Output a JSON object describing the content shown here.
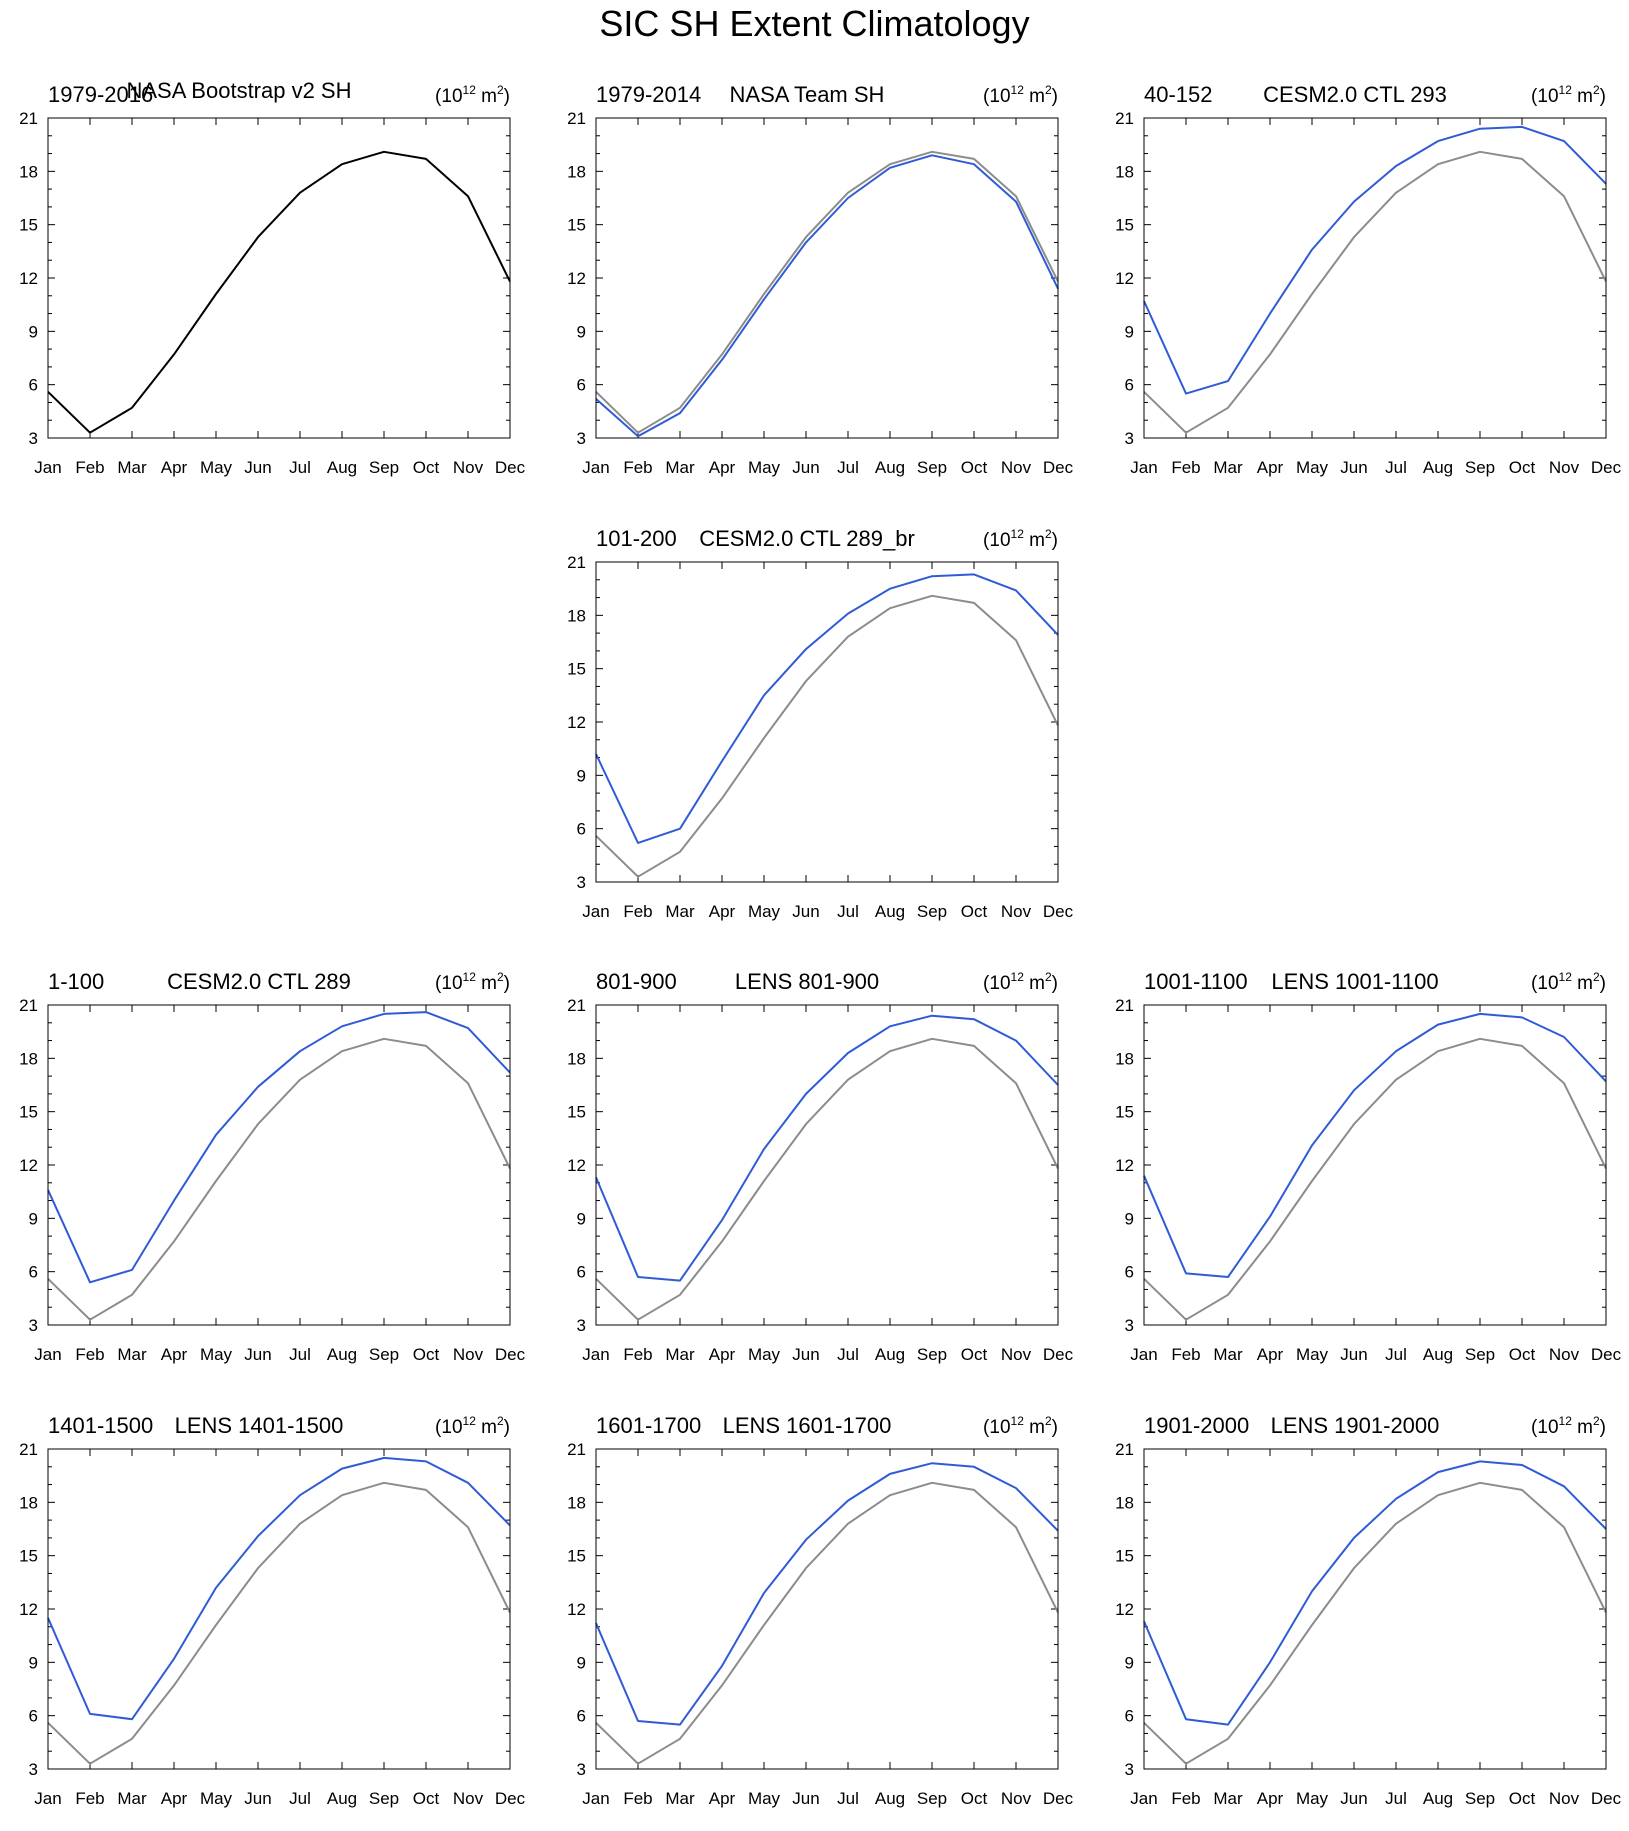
{
  "title": "SIC SH Extent Climatology",
  "units": {
    "base": "10",
    "exp": "12",
    "unit": "m",
    "unit_exp": "2"
  },
  "colors": {
    "reference": "#000000",
    "observation_overlay": "#8c8c8c",
    "model": "#2f5bd6"
  },
  "chart_data": [
    {
      "type": "line",
      "left_label": "1979-2016",
      "center_label": "NASA Bootstrap v2 SH",
      "categories": [
        "Jan",
        "Feb",
        "Mar",
        "Apr",
        "May",
        "Jun",
        "Jul",
        "Aug",
        "Sep",
        "Oct",
        "Nov",
        "Dec"
      ],
      "yticks": [
        3,
        6,
        9,
        12,
        15,
        18,
        21
      ],
      "ylim": [
        3,
        21
      ],
      "series": [
        {
          "name": "NASA Bootstrap v2 SH",
          "color": "#000000",
          "values": [
            5.6,
            3.3,
            4.7,
            7.7,
            11.1,
            14.3,
            16.8,
            18.4,
            19.1,
            18.7,
            16.6,
            11.8
          ]
        }
      ]
    },
    {
      "type": "line",
      "left_label": "1979-2014",
      "center_label": "NASA Team SH",
      "categories": [
        "Jan",
        "Feb",
        "Mar",
        "Apr",
        "May",
        "Jun",
        "Jul",
        "Aug",
        "Sep",
        "Oct",
        "Nov",
        "Dec"
      ],
      "yticks": [
        3,
        6,
        9,
        12,
        15,
        18,
        21
      ],
      "ylim": [
        3,
        21
      ],
      "series": [
        {
          "name": "NASA Bootstrap v2 SH",
          "color": "#8c8c8c",
          "values": [
            5.6,
            3.3,
            4.7,
            7.7,
            11.1,
            14.3,
            16.8,
            18.4,
            19.1,
            18.7,
            16.6,
            11.8
          ]
        },
        {
          "name": "NASA Team SH",
          "color": "#2f5bd6",
          "values": [
            5.2,
            3.1,
            4.4,
            7.4,
            10.8,
            14.0,
            16.5,
            18.2,
            18.9,
            18.4,
            16.3,
            11.4
          ]
        }
      ]
    },
    {
      "type": "line",
      "left_label": "40-152",
      "center_label": "CESM2.0 CTL 293",
      "categories": [
        "Jan",
        "Feb",
        "Mar",
        "Apr",
        "May",
        "Jun",
        "Jul",
        "Aug",
        "Sep",
        "Oct",
        "Nov",
        "Dec"
      ],
      "yticks": [
        3,
        6,
        9,
        12,
        15,
        18,
        21
      ],
      "ylim": [
        3,
        21
      ],
      "series": [
        {
          "name": "NASA Bootstrap v2 SH",
          "color": "#8c8c8c",
          "values": [
            5.6,
            3.3,
            4.7,
            7.7,
            11.1,
            14.3,
            16.8,
            18.4,
            19.1,
            18.7,
            16.6,
            11.8
          ]
        },
        {
          "name": "CESM2.0 CTL 293",
          "color": "#2f5bd6",
          "values": [
            10.7,
            5.5,
            6.2,
            10.0,
            13.6,
            16.3,
            18.3,
            19.7,
            20.4,
            20.5,
            19.7,
            17.3
          ]
        }
      ]
    },
    {
      "type": "line",
      "left_label": "101-200",
      "center_label": "CESM2.0 CTL 289_br",
      "categories": [
        "Jan",
        "Feb",
        "Mar",
        "Apr",
        "May",
        "Jun",
        "Jul",
        "Aug",
        "Sep",
        "Oct",
        "Nov",
        "Dec"
      ],
      "yticks": [
        3,
        6,
        9,
        12,
        15,
        18,
        21
      ],
      "ylim": [
        3,
        21
      ],
      "series": [
        {
          "name": "NASA Bootstrap v2 SH",
          "color": "#8c8c8c",
          "values": [
            5.6,
            3.3,
            4.7,
            7.7,
            11.1,
            14.3,
            16.8,
            18.4,
            19.1,
            18.7,
            16.6,
            11.8
          ]
        },
        {
          "name": "CESM2.0 CTL 289_br",
          "color": "#2f5bd6",
          "values": [
            10.2,
            5.2,
            6.0,
            9.8,
            13.5,
            16.1,
            18.1,
            19.5,
            20.2,
            20.3,
            19.4,
            16.9
          ]
        }
      ]
    },
    {
      "type": "line",
      "left_label": "1-100",
      "center_label": "CESM2.0 CTL 289",
      "categories": [
        "Jan",
        "Feb",
        "Mar",
        "Apr",
        "May",
        "Jun",
        "Jul",
        "Aug",
        "Sep",
        "Oct",
        "Nov",
        "Dec"
      ],
      "yticks": [
        3,
        6,
        9,
        12,
        15,
        18,
        21
      ],
      "ylim": [
        3,
        21
      ],
      "series": [
        {
          "name": "NASA Bootstrap v2 SH",
          "color": "#8c8c8c",
          "values": [
            5.6,
            3.3,
            4.7,
            7.7,
            11.1,
            14.3,
            16.8,
            18.4,
            19.1,
            18.7,
            16.6,
            11.8
          ]
        },
        {
          "name": "CESM2.0 CTL 289",
          "color": "#2f5bd6",
          "values": [
            10.6,
            5.4,
            6.1,
            10.0,
            13.7,
            16.4,
            18.4,
            19.8,
            20.5,
            20.6,
            19.7,
            17.2
          ]
        }
      ]
    },
    {
      "type": "line",
      "left_label": "801-900",
      "center_label": "LENS 801-900",
      "categories": [
        "Jan",
        "Feb",
        "Mar",
        "Apr",
        "May",
        "Jun",
        "Jul",
        "Aug",
        "Sep",
        "Oct",
        "Nov",
        "Dec"
      ],
      "yticks": [
        3,
        6,
        9,
        12,
        15,
        18,
        21
      ],
      "ylim": [
        3,
        21
      ],
      "series": [
        {
          "name": "NASA Bootstrap v2 SH",
          "color": "#8c8c8c",
          "values": [
            5.6,
            3.3,
            4.7,
            7.7,
            11.1,
            14.3,
            16.8,
            18.4,
            19.1,
            18.7,
            16.6,
            11.8
          ]
        },
        {
          "name": "LENS 801-900",
          "color": "#2f5bd6",
          "values": [
            11.3,
            5.7,
            5.5,
            8.9,
            12.9,
            16.0,
            18.3,
            19.8,
            20.4,
            20.2,
            19.0,
            16.5
          ]
        }
      ]
    },
    {
      "type": "line",
      "left_label": "1001-1100",
      "center_label": "LENS 1001-1100",
      "categories": [
        "Jan",
        "Feb",
        "Mar",
        "Apr",
        "May",
        "Jun",
        "Jul",
        "Aug",
        "Sep",
        "Oct",
        "Nov",
        "Dec"
      ],
      "yticks": [
        3,
        6,
        9,
        12,
        15,
        18,
        21
      ],
      "ylim": [
        3,
        21
      ],
      "series": [
        {
          "name": "NASA Bootstrap v2 SH",
          "color": "#8c8c8c",
          "values": [
            5.6,
            3.3,
            4.7,
            7.7,
            11.1,
            14.3,
            16.8,
            18.4,
            19.1,
            18.7,
            16.6,
            11.8
          ]
        },
        {
          "name": "LENS 1001-1100",
          "color": "#2f5bd6",
          "values": [
            11.4,
            5.9,
            5.7,
            9.1,
            13.1,
            16.2,
            18.4,
            19.9,
            20.5,
            20.3,
            19.2,
            16.7
          ]
        }
      ]
    },
    {
      "type": "line",
      "left_label": "1401-1500",
      "center_label": "LENS 1401-1500",
      "categories": [
        "Jan",
        "Feb",
        "Mar",
        "Apr",
        "May",
        "Jun",
        "Jul",
        "Aug",
        "Sep",
        "Oct",
        "Nov",
        "Dec"
      ],
      "yticks": [
        3,
        6,
        9,
        12,
        15,
        18,
        21
      ],
      "ylim": [
        3,
        21
      ],
      "series": [
        {
          "name": "NASA Bootstrap v2 SH",
          "color": "#8c8c8c",
          "values": [
            5.6,
            3.3,
            4.7,
            7.7,
            11.1,
            14.3,
            16.8,
            18.4,
            19.1,
            18.7,
            16.6,
            11.8
          ]
        },
        {
          "name": "LENS 1401-1500",
          "color": "#2f5bd6",
          "values": [
            11.5,
            6.1,
            5.8,
            9.2,
            13.2,
            16.1,
            18.4,
            19.9,
            20.5,
            20.3,
            19.1,
            16.7
          ]
        }
      ]
    },
    {
      "type": "line",
      "left_label": "1601-1700",
      "center_label": "LENS 1601-1700",
      "categories": [
        "Jan",
        "Feb",
        "Mar",
        "Apr",
        "May",
        "Jun",
        "Jul",
        "Aug",
        "Sep",
        "Oct",
        "Nov",
        "Dec"
      ],
      "yticks": [
        3,
        6,
        9,
        12,
        15,
        18,
        21
      ],
      "ylim": [
        3,
        21
      ],
      "series": [
        {
          "name": "NASA Bootstrap v2 SH",
          "color": "#8c8c8c",
          "values": [
            5.6,
            3.3,
            4.7,
            7.7,
            11.1,
            14.3,
            16.8,
            18.4,
            19.1,
            18.7,
            16.6,
            11.8
          ]
        },
        {
          "name": "LENS 1601-1700",
          "color": "#2f5bd6",
          "values": [
            11.2,
            5.7,
            5.5,
            8.8,
            12.9,
            15.9,
            18.1,
            19.6,
            20.2,
            20.0,
            18.8,
            16.4
          ]
        }
      ]
    },
    {
      "type": "line",
      "left_label": "1901-2000",
      "center_label": "LENS 1901-2000",
      "categories": [
        "Jan",
        "Feb",
        "Mar",
        "Apr",
        "May",
        "Jun",
        "Jul",
        "Aug",
        "Sep",
        "Oct",
        "Nov",
        "Dec"
      ],
      "yticks": [
        3,
        6,
        9,
        12,
        15,
        18,
        21
      ],
      "ylim": [
        3,
        21
      ],
      "series": [
        {
          "name": "NASA Bootstrap v2 SH",
          "color": "#8c8c8c",
          "values": [
            5.6,
            3.3,
            4.7,
            7.7,
            11.1,
            14.3,
            16.8,
            18.4,
            19.1,
            18.7,
            16.6,
            11.8
          ]
        },
        {
          "name": "LENS 1901-2000",
          "color": "#2f5bd6",
          "values": [
            11.3,
            5.8,
            5.5,
            9.0,
            13.0,
            16.0,
            18.2,
            19.7,
            20.3,
            20.1,
            18.9,
            16.5
          ]
        }
      ]
    }
  ]
}
